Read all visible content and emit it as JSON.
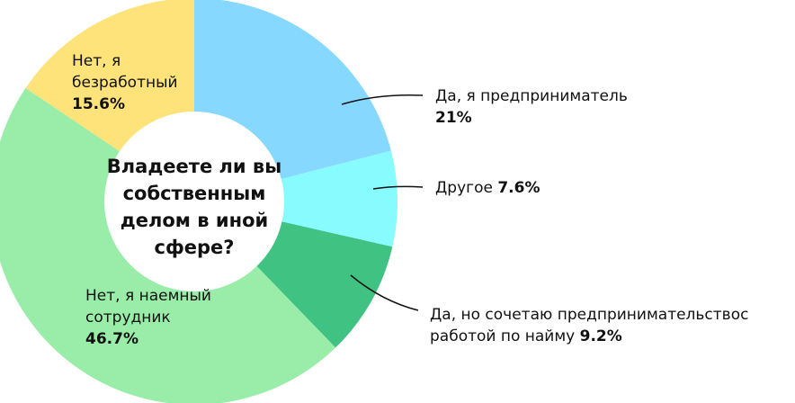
{
  "chart_data": {
    "type": "donut",
    "title": "Владеете ли вы собственным делом в иной сфере?",
    "categories": [
      "Да, я предприниматель",
      "Другое",
      "Да, но сочетаю предпринимательствос работой по найму",
      "Нет, я наемный сотрудник",
      "Нет, я безработный"
    ],
    "values": [
      21,
      7.6,
      9.2,
      46.7,
      15.6
    ],
    "value_labels": [
      "21%",
      "7.6%",
      "9.2%",
      "46.7%",
      "15.6%"
    ],
    "colors": [
      "#86d8ff",
      "#88fbff",
      "#40c283",
      "#99eda8",
      "#fde37a"
    ]
  }
}
